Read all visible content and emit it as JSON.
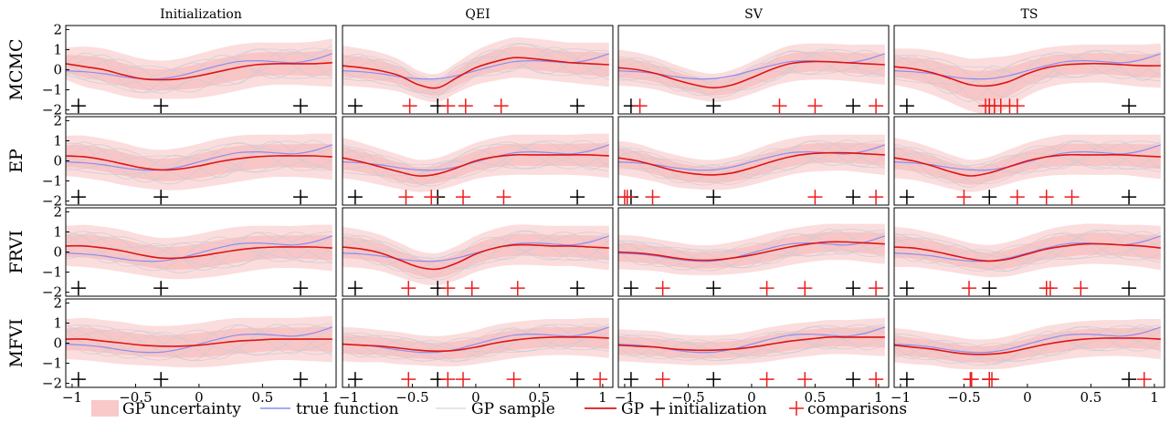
{
  "chart_data": {
    "type": "line",
    "columns": [
      "Initialization",
      "QEI",
      "SV",
      "TS"
    ],
    "rows": [
      "MCMC",
      "EP",
      "FRVI",
      "MFVI"
    ],
    "xlim": [
      -1.05,
      1.08
    ],
    "ylim": [
      -2.2,
      2.2
    ],
    "xticks": [
      -1,
      -0.5,
      0,
      0.5,
      1
    ],
    "xtick_labels": [
      "−1",
      "−0.5",
      "0",
      "0.5",
      "1"
    ],
    "yticks": [
      -2,
      -1,
      0,
      1,
      2
    ],
    "ytick_labels": [
      "−2",
      "−1",
      "0",
      "1",
      "2"
    ],
    "grid": false,
    "legend": {
      "placement": "bottom",
      "entries": [
        "GP uncertainty",
        "true function",
        "GP sample",
        "GP",
        "initialization",
        "comparisons"
      ]
    },
    "colors": {
      "uncertainty": "#f4a6a6",
      "true_function": "#8c8cf2",
      "gp_sample": "#c8ccd6",
      "gp_mean": "#e01414",
      "initialization": "#000000",
      "comparisons": "#ee1c1c"
    },
    "true_function": {
      "x": [
        -1.05,
        -0.9,
        -0.75,
        -0.6,
        -0.45,
        -0.3,
        -0.15,
        0,
        0.15,
        0.3,
        0.45,
        0.6,
        0.75,
        0.9,
        1.05
      ],
      "y": [
        -0.05,
        -0.1,
        -0.2,
        -0.35,
        -0.45,
        -0.45,
        -0.3,
        -0.05,
        0.2,
        0.4,
        0.45,
        0.4,
        0.35,
        0.5,
        0.8
      ]
    },
    "initialization_x": [
      -0.95,
      -0.3,
      0.8
    ],
    "marker_y": -1.8,
    "panels": [
      [
        {
          "mean": [
            0.3,
            0.15,
            0,
            -0.25,
            -0.45,
            -0.5,
            -0.45,
            -0.3,
            -0.1,
            0.1,
            0.25,
            0.3,
            0.3,
            0.3,
            0.35
          ],
          "band": [
            0.8,
            1.0,
            1.05,
            1.05,
            1.0,
            0.95,
            1.0,
            1.1,
            1.15,
            1.15,
            1.1,
            1.05,
            1.05,
            1.1,
            1.2
          ],
          "comparisons": []
        },
        {
          "mean": [
            0.2,
            0.1,
            -0.05,
            -0.3,
            -0.75,
            -0.9,
            -0.4,
            0.1,
            0.4,
            0.6,
            0.55,
            0.45,
            0.35,
            0.3,
            0.25
          ],
          "band": [
            1.0,
            0.95,
            0.9,
            0.8,
            0.7,
            0.7,
            0.75,
            0.85,
            0.95,
            1.0,
            1.0,
            1.0,
            1.0,
            1.05,
            1.1
          ],
          "comparisons": [
            -0.52,
            -0.22,
            -0.08,
            0.2
          ]
        },
        {
          "mean": [
            0.1,
            0,
            -0.2,
            -0.5,
            -0.75,
            -0.9,
            -0.75,
            -0.4,
            0,
            0.3,
            0.4,
            0.4,
            0.35,
            0.3,
            0.25
          ],
          "band": [
            0.9,
            0.85,
            0.8,
            0.75,
            0.7,
            0.7,
            0.75,
            0.8,
            0.85,
            0.9,
            0.9,
            0.9,
            0.9,
            0.95,
            1.0
          ],
          "comparisons": [
            -0.88,
            0.22,
            0.5,
            0.98
          ]
        },
        {
          "mean": [
            0.15,
            0.05,
            -0.15,
            -0.45,
            -0.75,
            -0.8,
            -0.6,
            -0.2,
            0.1,
            0.25,
            0.3,
            0.3,
            0.25,
            0.2,
            0.2
          ],
          "band": [
            0.9,
            1.0,
            1.1,
            1.2,
            1.3,
            1.4,
            1.3,
            1.1,
            1.0,
            0.95,
            0.95,
            0.95,
            1.0,
            1.05,
            1.1
          ],
          "comparisons": [
            -0.33,
            -0.3,
            -0.26,
            -0.21,
            -0.14,
            -0.08
          ]
        }
      ],
      [
        {
          "mean": [
            0.25,
            0.2,
            0.05,
            -0.15,
            -0.35,
            -0.45,
            -0.4,
            -0.25,
            -0.05,
            0.1,
            0.2,
            0.25,
            0.25,
            0.25,
            0.2
          ],
          "band": [
            1.0,
            1.05,
            1.05,
            1.05,
            1.0,
            1.0,
            1.05,
            1.1,
            1.15,
            1.15,
            1.1,
            1.05,
            1.05,
            1.1,
            1.15
          ],
          "comparisons": []
        },
        {
          "mean": [
            0.15,
            -0.05,
            -0.3,
            -0.55,
            -0.75,
            -0.65,
            -0.35,
            0,
            0.2,
            0.3,
            0.3,
            0.3,
            0.3,
            0.3,
            0.25
          ],
          "band": [
            1.0,
            0.95,
            0.9,
            0.85,
            0.8,
            0.8,
            0.85,
            0.9,
            0.95,
            1.0,
            1.0,
            1.0,
            1.0,
            1.05,
            1.1
          ],
          "comparisons": [
            -0.55,
            -0.35,
            -0.1,
            0.22
          ]
        },
        {
          "mean": [
            0.15,
            0,
            -0.25,
            -0.5,
            -0.65,
            -0.7,
            -0.6,
            -0.35,
            -0.05,
            0.2,
            0.35,
            0.4,
            0.4,
            0.35,
            0.3
          ],
          "band": [
            0.85,
            0.85,
            0.8,
            0.8,
            0.75,
            0.75,
            0.8,
            0.85,
            0.9,
            0.9,
            0.9,
            0.9,
            0.9,
            0.95,
            1.0
          ],
          "comparisons": [
            -1,
            -0.98,
            -0.78,
            0.5,
            0.98
          ]
        },
        {
          "mean": [
            0.15,
            0,
            -0.25,
            -0.55,
            -0.75,
            -0.6,
            -0.3,
            0,
            0.2,
            0.3,
            0.3,
            0.3,
            0.3,
            0.25,
            0.2
          ],
          "band": [
            1.0,
            0.95,
            0.9,
            0.85,
            0.8,
            0.8,
            0.85,
            0.9,
            0.95,
            1.0,
            1.0,
            1.0,
            1.0,
            1.05,
            1.1
          ],
          "comparisons": [
            -0.5,
            -0.08,
            0.15,
            0.35
          ]
        }
      ],
      [
        {
          "mean": [
            0.3,
            0.3,
            0.2,
            0.05,
            -0.15,
            -0.3,
            -0.3,
            -0.2,
            -0.05,
            0.1,
            0.2,
            0.25,
            0.25,
            0.25,
            0.2
          ],
          "band": [
            1.0,
            1.05,
            1.05,
            1.05,
            1.0,
            1.0,
            1.05,
            1.1,
            1.15,
            1.15,
            1.1,
            1.05,
            1.05,
            1.1,
            1.15
          ],
          "comparisons": []
        },
        {
          "mean": [
            0.25,
            0.15,
            -0.05,
            -0.4,
            -0.75,
            -0.85,
            -0.55,
            -0.1,
            0.2,
            0.35,
            0.35,
            0.3,
            0.3,
            0.25,
            0.2
          ],
          "band": [
            1.0,
            0.95,
            0.9,
            0.85,
            0.8,
            0.8,
            0.85,
            0.9,
            0.95,
            1.0,
            1.0,
            1.0,
            1.0,
            1.05,
            1.1
          ],
          "comparisons": [
            -0.53,
            -0.22,
            -0.03,
            0.33
          ]
        },
        {
          "mean": [
            0,
            -0.05,
            -0.15,
            -0.3,
            -0.4,
            -0.4,
            -0.3,
            -0.15,
            0.05,
            0.25,
            0.4,
            0.5,
            0.5,
            0.45,
            0.4
          ],
          "band": [
            0.85,
            0.85,
            0.8,
            0.8,
            0.75,
            0.75,
            0.8,
            0.85,
            0.9,
            0.9,
            0.9,
            0.9,
            0.9,
            0.95,
            1.0
          ],
          "comparisons": [
            -0.7,
            0.12,
            0.42,
            0.98
          ]
        },
        {
          "mean": [
            0.25,
            0.2,
            0.05,
            -0.15,
            -0.35,
            -0.45,
            -0.35,
            -0.1,
            0.15,
            0.3,
            0.4,
            0.4,
            0.35,
            0.3,
            0.2
          ],
          "band": [
            1.0,
            0.95,
            0.9,
            0.85,
            0.8,
            0.8,
            0.85,
            0.9,
            0.95,
            1.0,
            1.0,
            1.0,
            1.0,
            1.05,
            1.1
          ],
          "comparisons": [
            -0.46,
            0.15,
            0.18,
            0.42
          ]
        }
      ],
      [
        {
          "mean": [
            0.2,
            0.2,
            0.1,
            0,
            -0.1,
            -0.15,
            -0.15,
            -0.1,
            0,
            0.1,
            0.15,
            0.2,
            0.2,
            0.2,
            0.2
          ],
          "band": [
            1.0,
            1.05,
            1.05,
            1.05,
            1.0,
            1.0,
            1.05,
            1.1,
            1.15,
            1.15,
            1.1,
            1.05,
            1.05,
            1.1,
            1.15
          ],
          "comparisons": []
        },
        {
          "mean": [
            -0.05,
            -0.1,
            -0.15,
            -0.25,
            -0.35,
            -0.4,
            -0.35,
            -0.2,
            0,
            0.15,
            0.25,
            0.3,
            0.3,
            0.3,
            0.25
          ],
          "band": [
            0.85,
            0.85,
            0.8,
            0.8,
            0.75,
            0.75,
            0.8,
            0.85,
            0.9,
            0.9,
            0.9,
            0.9,
            0.9,
            0.95,
            1.0
          ],
          "comparisons": [
            -0.53,
            -0.22,
            -0.1,
            0.3,
            0.98
          ]
        },
        {
          "mean": [
            -0.1,
            -0.15,
            -0.2,
            -0.3,
            -0.35,
            -0.35,
            -0.3,
            -0.2,
            -0.05,
            0.1,
            0.2,
            0.3,
            0.3,
            0.3,
            0.3
          ],
          "band": [
            0.8,
            0.8,
            0.8,
            0.75,
            0.75,
            0.75,
            0.75,
            0.8,
            0.85,
            0.85,
            0.85,
            0.85,
            0.85,
            0.9,
            0.95
          ],
          "comparisons": [
            -0.7,
            0.12,
            0.42,
            0.98
          ]
        },
        {
          "mean": [
            -0.1,
            -0.2,
            -0.3,
            -0.45,
            -0.55,
            -0.55,
            -0.45,
            -0.25,
            -0.05,
            0.1,
            0.2,
            0.25,
            0.25,
            0.25,
            0.2
          ],
          "band": [
            0.85,
            0.85,
            0.8,
            0.8,
            0.75,
            0.75,
            0.8,
            0.85,
            0.9,
            0.9,
            0.9,
            0.9,
            0.9,
            0.95,
            1.0
          ],
          "comparisons": [
            -0.45,
            -0.44,
            -0.3,
            -0.28,
            0.92
          ]
        }
      ]
    ]
  }
}
